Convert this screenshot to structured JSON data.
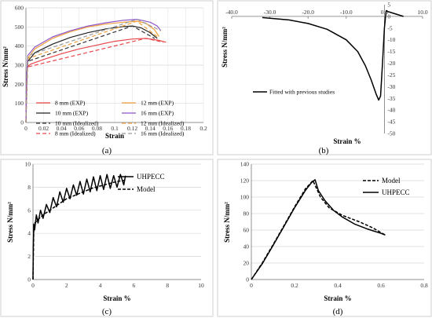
{
  "panels": [
    {
      "id": "a",
      "label": "(a)",
      "xlabel": "Strain",
      "ylabel": "Stress N/mm²",
      "xlim": [
        0,
        0.2
      ],
      "ylim": [
        0,
        600
      ],
      "xticks": [
        0,
        0.02,
        0.04,
        0.06,
        0.08,
        0.1,
        0.12,
        0.14,
        0.16,
        0.18,
        0.2
      ],
      "yticks": [
        0,
        100,
        200,
        300,
        400,
        500,
        600
      ],
      "xtick_labels": [
        "0",
        "0.02",
        "0.04",
        "0.06",
        "0.08",
        "0.1",
        "0.12",
        "0.14",
        "0.16",
        "0.18",
        "0.2"
      ],
      "ytick_labels": [
        "0",
        "100",
        "200",
        "300",
        "400",
        "500",
        "600"
      ],
      "grid": true,
      "series": [
        {
          "name": "8 mm (EXP)",
          "color": "#e8474b",
          "dash": "",
          "points": [
            [
              0,
              0
            ],
            [
              0.001,
              200
            ],
            [
              0.0015,
              290
            ],
            [
              0.005,
              305
            ],
            [
              0.02,
              330
            ],
            [
              0.04,
              360
            ],
            [
              0.06,
              385
            ],
            [
              0.08,
              405
            ],
            [
              0.1,
              425
            ],
            [
              0.12,
              437
            ],
            [
              0.135,
              440
            ],
            [
              0.15,
              430
            ],
            [
              0.158,
              420
            ]
          ]
        },
        {
          "name": "10 mm (EXP)",
          "color": "#222222",
          "dash": "",
          "points": [
            [
              0,
              0
            ],
            [
              0.001,
              240
            ],
            [
              0.002,
              320
            ],
            [
              0.01,
              365
            ],
            [
              0.03,
              410
            ],
            [
              0.05,
              445
            ],
            [
              0.07,
              470
            ],
            [
              0.09,
              490
            ],
            [
              0.11,
              502
            ],
            [
              0.12,
              505
            ],
            [
              0.13,
              495
            ],
            [
              0.14,
              470
            ],
            [
              0.148,
              440
            ]
          ]
        },
        {
          "name": "12 mm (EXP)",
          "color": "#f0a13c",
          "dash": "",
          "points": [
            [
              0,
              0
            ],
            [
              0.001,
              250
            ],
            [
              0.002,
              335
            ],
            [
              0.01,
              385
            ],
            [
              0.03,
              440
            ],
            [
              0.05,
              475
            ],
            [
              0.07,
              500
            ],
            [
              0.09,
              515
            ],
            [
              0.11,
              525
            ],
            [
              0.125,
              530
            ],
            [
              0.135,
              520
            ],
            [
              0.145,
              485
            ],
            [
              0.15,
              450
            ]
          ]
        },
        {
          "name": "16 mm (EXP)",
          "color": "#8e55c8",
          "dash": "",
          "points": [
            [
              0,
              0
            ],
            [
              0.001,
              260
            ],
            [
              0.002,
              350
            ],
            [
              0.01,
              395
            ],
            [
              0.03,
              448
            ],
            [
              0.05,
              480
            ],
            [
              0.07,
              505
            ],
            [
              0.09,
              522
            ],
            [
              0.11,
              535
            ],
            [
              0.125,
              540
            ],
            [
              0.14,
              525
            ],
            [
              0.148,
              505
            ],
            [
              0.152,
              480
            ]
          ]
        },
        {
          "name": "10 mm (Idealized)",
          "color": "#333333",
          "dash": "5,3",
          "points": [
            [
              0,
              0
            ],
            [
              0.002,
              320
            ],
            [
              0.12,
              505
            ],
            [
              0.145,
              440
            ]
          ]
        },
        {
          "name": "8 mm (Idealized)",
          "color": "#e8474b",
          "dash": "5,3",
          "points": [
            [
              0,
              0
            ],
            [
              0.0015,
              290
            ],
            [
              0.135,
              440
            ],
            [
              0.155,
              420
            ]
          ]
        },
        {
          "name": "12 mm (Idealized)",
          "color": "#f0a13c",
          "dash": "5,3",
          "points": [
            [
              0,
              0
            ],
            [
              0.002,
              335
            ],
            [
              0.125,
              530
            ],
            [
              0.148,
              450
            ]
          ]
        },
        {
          "name": "16 mm (Idealized)",
          "color": "#999999",
          "dash": "5,3",
          "points": [
            [
              0,
              0
            ],
            [
              0.002,
              350
            ],
            [
              0.125,
              540
            ],
            [
              0.152,
              480
            ]
          ]
        }
      ]
    },
    {
      "id": "b",
      "label": "(b)",
      "xlabel": "Strain %",
      "ylabel": "Stress N/mm²",
      "xlim": [
        -40,
        10
      ],
      "ylim": [
        -50,
        5
      ],
      "xticks": [
        -40,
        -30,
        -20,
        -10,
        0,
        10
      ],
      "yticks": [
        5,
        0,
        -5,
        -10,
        -15,
        -20,
        -25,
        -30,
        -35,
        -40,
        -45,
        -50
      ],
      "xtick_labels": [
        "-40.0",
        "-30.0",
        "-20.0",
        "-10.0",
        "0.0",
        "10.0"
      ],
      "ytick_labels": [
        "5",
        "0",
        "-5",
        "-10",
        "-15",
        "-20",
        "-25",
        "-30",
        "-35",
        "-40",
        "-45",
        "-50"
      ],
      "grid": false,
      "series": [
        {
          "name": "Fitted with previous studies",
          "color": "#000000",
          "dash": "",
          "points": [
            [
              -32,
              -0.5
            ],
            [
              -25,
              -1.5
            ],
            [
              -20,
              -3
            ],
            [
              -15,
              -5.5
            ],
            [
              -10,
              -10
            ],
            [
              -7,
              -15
            ],
            [
              -5,
              -21
            ],
            [
              -3.5,
              -27
            ],
            [
              -2.2,
              -33
            ],
            [
              -1.5,
              -35.7
            ],
            [
              -1.0,
              -34
            ],
            [
              -0.5,
              -20
            ],
            [
              0,
              -5
            ],
            [
              0.3,
              0
            ],
            [
              0.5,
              2.5
            ],
            [
              1,
              2
            ],
            [
              3,
              1
            ],
            [
              5,
              0
            ]
          ]
        }
      ]
    },
    {
      "id": "c",
      "label": "(c)",
      "xlabel": "Strain %",
      "ylabel": "Stress N/mm²",
      "xlim": [
        0,
        10
      ],
      "ylim": [
        0,
        10
      ],
      "xticks": [
        0,
        2,
        4,
        6,
        8,
        10
      ],
      "yticks": [
        0,
        2,
        4,
        6,
        8,
        10
      ],
      "xtick_labels": [
        "0",
        "2",
        "4",
        "6",
        "8",
        "10"
      ],
      "ytick_labels": [
        "0",
        "2",
        "4",
        "6",
        "8",
        "10"
      ],
      "grid": true,
      "series": [
        {
          "name": "UHPECC",
          "color": "#000000",
          "dash": "",
          "points": [
            [
              0,
              0
            ],
            [
              0.02,
              3
            ],
            [
              0.05,
              4.8
            ],
            [
              0.1,
              4.3
            ],
            [
              0.2,
              5.6
            ],
            [
              0.3,
              4.9
            ],
            [
              0.45,
              6.0
            ],
            [
              0.6,
              5.3
            ],
            [
              0.8,
              6.5
            ],
            [
              1.0,
              5.8
            ],
            [
              1.2,
              7.1
            ],
            [
              1.4,
              6.3
            ],
            [
              1.6,
              7.6
            ],
            [
              1.8,
              6.7
            ],
            [
              2.0,
              7.9
            ],
            [
              2.2,
              7.0
            ],
            [
              2.4,
              8.2
            ],
            [
              2.6,
              7.3
            ],
            [
              2.8,
              8.5
            ],
            [
              3.0,
              7.4
            ],
            [
              3.2,
              8.7
            ],
            [
              3.4,
              7.6
            ],
            [
              3.6,
              8.9
            ],
            [
              3.8,
              7.7
            ],
            [
              4.0,
              9.0
            ],
            [
              4.2,
              7.8
            ],
            [
              4.4,
              9.1
            ],
            [
              4.6,
              7.9
            ],
            [
              4.8,
              9.0
            ],
            [
              5.0,
              8.0
            ],
            [
              5.2,
              9.1
            ],
            [
              5.4,
              8.2
            ],
            [
              5.5,
              9.0
            ]
          ]
        },
        {
          "name": "Model",
          "color": "#000000",
          "dash": "4,2",
          "points": [
            [
              0,
              0
            ],
            [
              0.05,
              4.8
            ],
            [
              0.3,
              5.2
            ],
            [
              0.6,
              5.6
            ],
            [
              1,
              6.0
            ],
            [
              1.5,
              6.5
            ],
            [
              2,
              7.0
            ],
            [
              2.5,
              7.3
            ],
            [
              3,
              7.6
            ],
            [
              3.5,
              7.9
            ],
            [
              4,
              8.1
            ],
            [
              4.5,
              8.3
            ],
            [
              5,
              8.5
            ],
            [
              5.5,
              8.6
            ]
          ]
        }
      ]
    },
    {
      "id": "d",
      "label": "(d)",
      "xlabel": "Strain %",
      "ylabel": "Stress N/mm²",
      "xlim": [
        0,
        0.8
      ],
      "ylim": [
        0,
        140
      ],
      "xticks": [
        0,
        0.2,
        0.4,
        0.6,
        0.8
      ],
      "yticks": [
        0,
        20,
        40,
        60,
        80,
        100,
        120,
        140
      ],
      "xtick_labels": [
        "0",
        "0.2",
        "0.4",
        "0.6",
        "0.8"
      ],
      "ytick_labels": [
        "0",
        "20",
        "40",
        "60",
        "80",
        "100",
        "120",
        "140"
      ],
      "grid": true,
      "series": [
        {
          "name": "Model",
          "color": "#000000",
          "dash": "4,2",
          "points": [
            [
              0,
              0
            ],
            [
              0.05,
              20
            ],
            [
              0.1,
              42
            ],
            [
              0.15,
              65
            ],
            [
              0.2,
              88
            ],
            [
              0.25,
              110
            ],
            [
              0.285,
              120
            ],
            [
              0.32,
              100
            ],
            [
              0.36,
              87
            ],
            [
              0.42,
              78
            ],
            [
              0.5,
              70
            ],
            [
              0.56,
              63
            ],
            [
              0.62,
              54
            ]
          ]
        },
        {
          "name": "UHPECC",
          "color": "#000000",
          "dash": "",
          "points": [
            [
              0,
              0
            ],
            [
              0.05,
              19
            ],
            [
              0.1,
              41
            ],
            [
              0.15,
              64
            ],
            [
              0.2,
              87
            ],
            [
              0.25,
              108
            ],
            [
              0.28,
              118
            ],
            [
              0.295,
              121
            ],
            [
              0.31,
              108
            ],
            [
              0.34,
              96
            ],
            [
              0.38,
              84
            ],
            [
              0.42,
              76
            ],
            [
              0.48,
              67
            ],
            [
              0.54,
              61
            ],
            [
              0.6,
              56
            ],
            [
              0.62,
              54
            ]
          ]
        }
      ]
    }
  ]
}
